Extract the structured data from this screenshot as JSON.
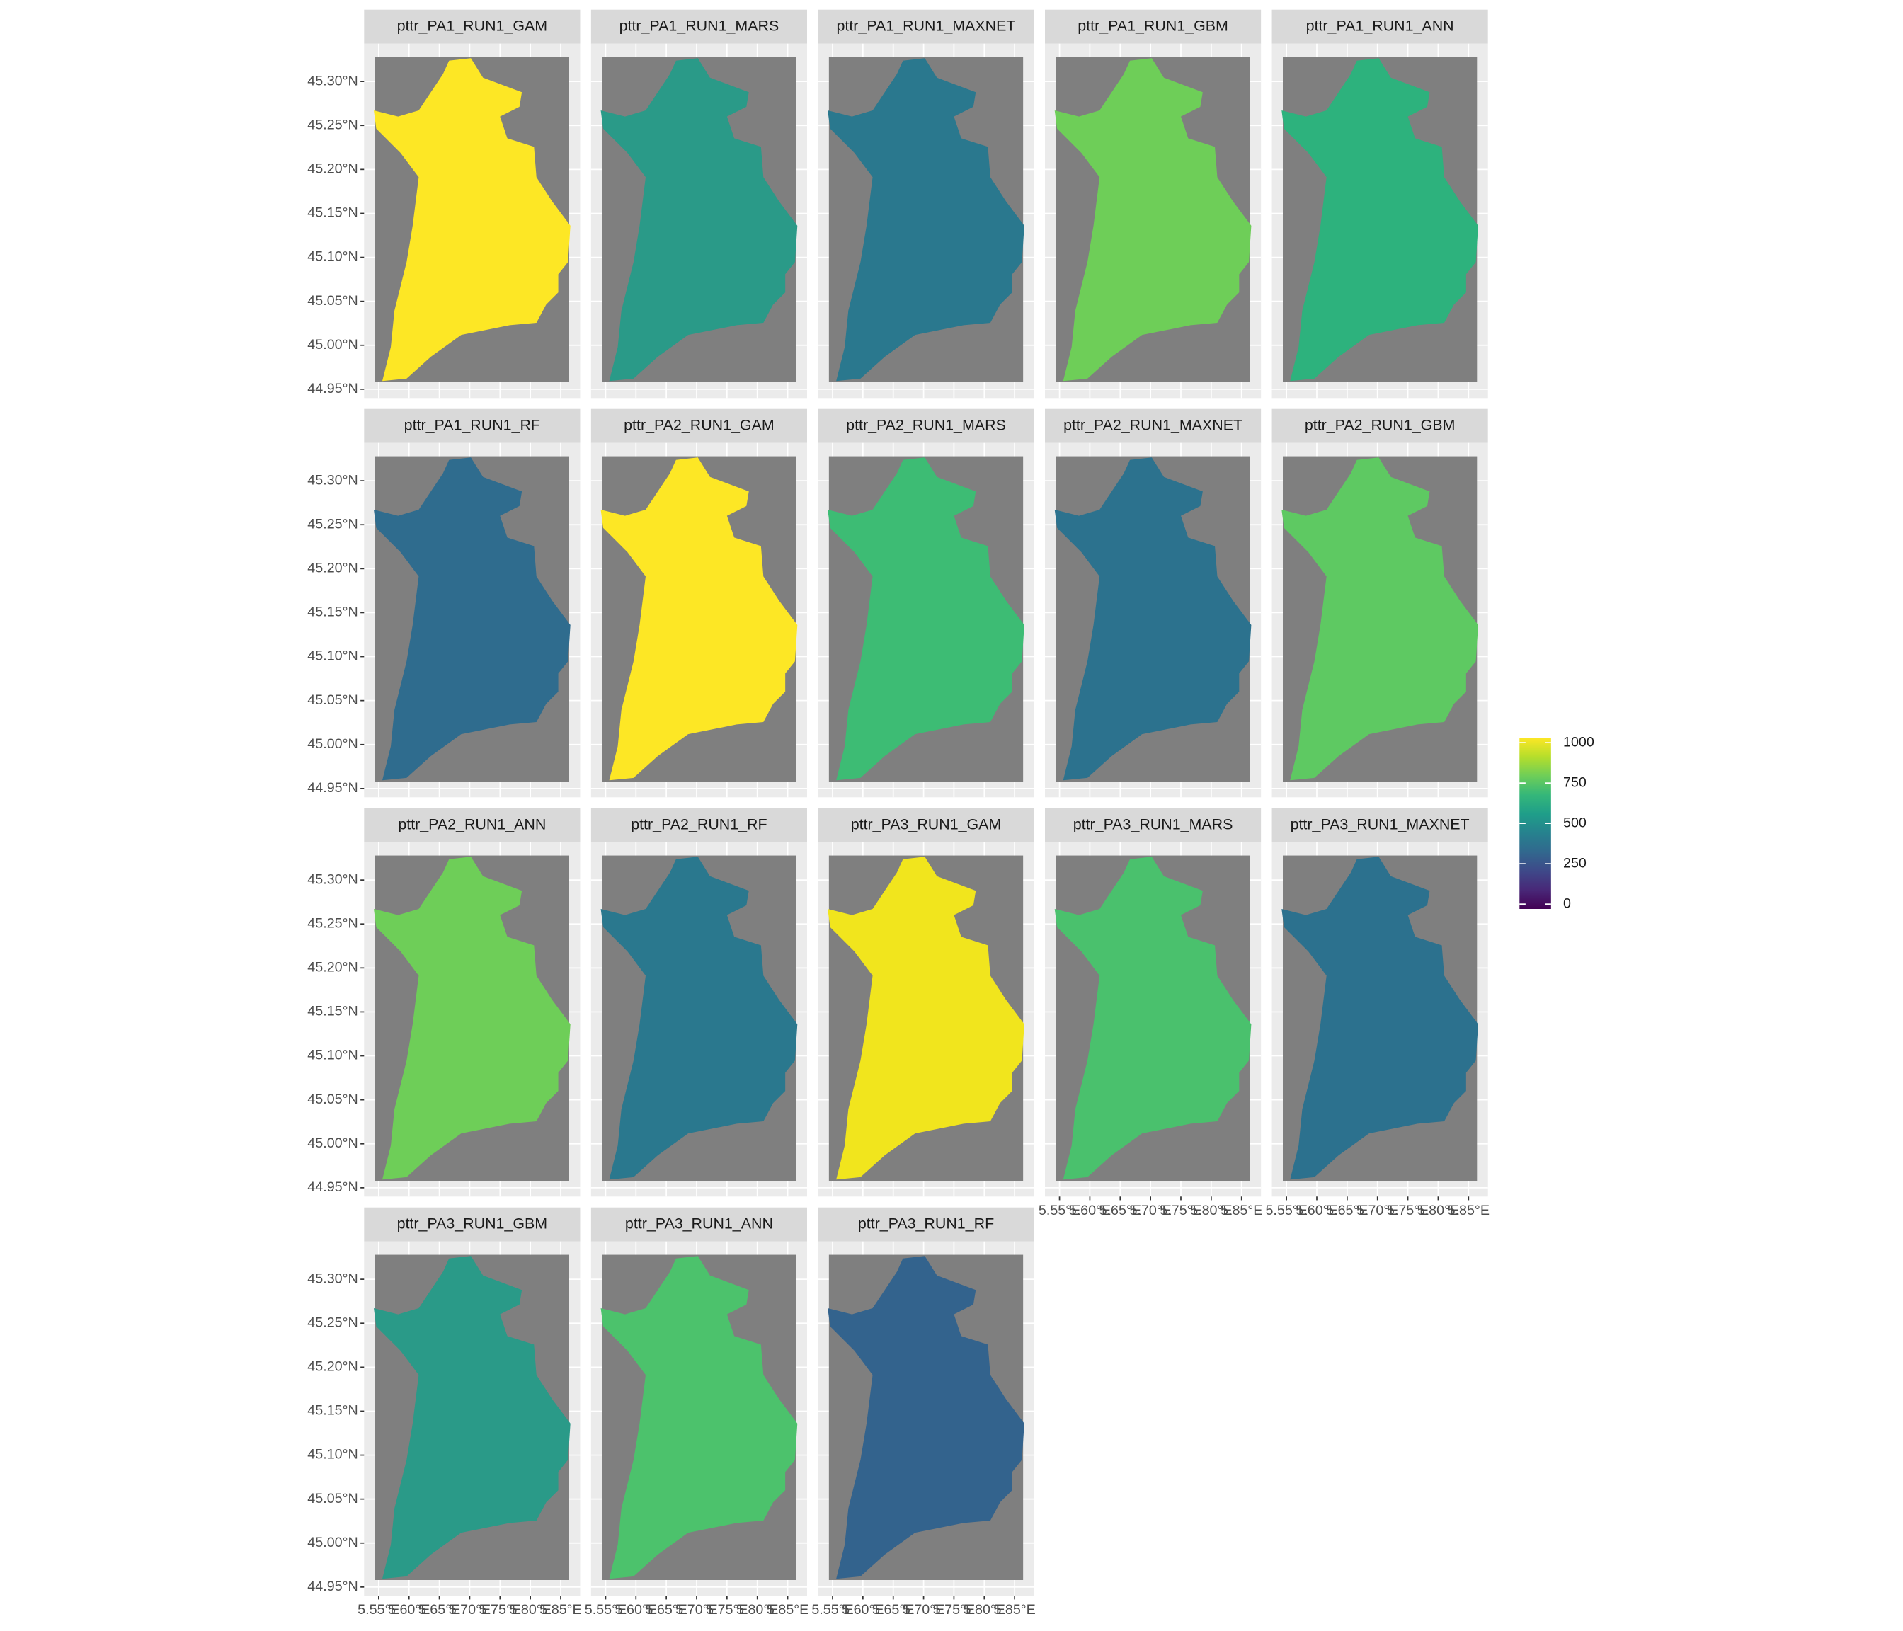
{
  "chart_data": {
    "type": "map",
    "panels": [
      {
        "title": "pttr_PA1_RUN1_GAM",
        "color": "#fde725"
      },
      {
        "title": "pttr_PA1_RUN1_MARS",
        "color": "#2a9a88"
      },
      {
        "title": "pttr_PA1_RUN1_MAXNET",
        "color": "#2a788e"
      },
      {
        "title": "pttr_PA1_RUN1_GBM",
        "color": "#6ece58"
      },
      {
        "title": "pttr_PA1_RUN1_ANN",
        "color": "#2db27d"
      },
      {
        "title": "pttr_PA1_RUN1_RF",
        "color": "#2f6c8e"
      },
      {
        "title": "pttr_PA2_RUN1_GAM",
        "color": "#fde725"
      },
      {
        "title": "pttr_PA2_RUN1_MARS",
        "color": "#3dbc74"
      },
      {
        "title": "pttr_PA2_RUN1_MAXNET",
        "color": "#2c728e"
      },
      {
        "title": "pttr_PA2_RUN1_GBM",
        "color": "#5ec962"
      },
      {
        "title": "pttr_PA2_RUN1_ANN",
        "color": "#6ece58"
      },
      {
        "title": "pttr_PA2_RUN1_RF",
        "color": "#2a788e"
      },
      {
        "title": "pttr_PA3_RUN1_GAM",
        "color": "#f1e51d"
      },
      {
        "title": "pttr_PA3_RUN1_MARS",
        "color": "#4ac16d"
      },
      {
        "title": "pttr_PA3_RUN1_MAXNET",
        "color": "#2c718e"
      },
      {
        "title": "pttr_PA3_RUN1_GBM",
        "color": "#2a9a88"
      },
      {
        "title": "pttr_PA3_RUN1_ANN",
        "color": "#4cc26c"
      },
      {
        "title": "pttr_PA3_RUN1_RF",
        "color": "#33638d"
      }
    ],
    "xlim": [
      5.526,
      5.882
    ],
    "xticks": [
      {
        "value": 5.55,
        "label": "5.55°E"
      },
      {
        "value": 5.6,
        "label": "5.60°E"
      },
      {
        "value": 5.65,
        "label": "5.65°E"
      },
      {
        "value": 5.7,
        "label": "5.70°E"
      },
      {
        "value": 5.75,
        "label": "5.75°E"
      },
      {
        "value": 5.8,
        "label": "5.80°E"
      },
      {
        "value": 5.85,
        "label": "5.85°E"
      }
    ],
    "ylim": [
      44.94,
      45.343
    ],
    "yticks": [
      {
        "value": 44.95,
        "label": "44.95°N"
      },
      {
        "value": 45.0,
        "label": "45.00°N"
      },
      {
        "value": 45.05,
        "label": "45.05°N"
      },
      {
        "value": 45.1,
        "label": "45.10°N"
      },
      {
        "value": 45.15,
        "label": "45.15°N"
      },
      {
        "value": 45.2,
        "label": "45.20°N"
      },
      {
        "value": 45.25,
        "label": "45.25°N"
      },
      {
        "value": 45.3,
        "label": "45.30°N"
      }
    ],
    "legend": {
      "lim": [
        0,
        1000
      ],
      "ticks": [
        0,
        250,
        500,
        750,
        1000
      ],
      "colors": [
        "#440154",
        "#482878",
        "#3e4989",
        "#31688e",
        "#26828e",
        "#1f9e89",
        "#35b779",
        "#6ece58",
        "#b5de2b",
        "#fde725"
      ]
    }
  }
}
